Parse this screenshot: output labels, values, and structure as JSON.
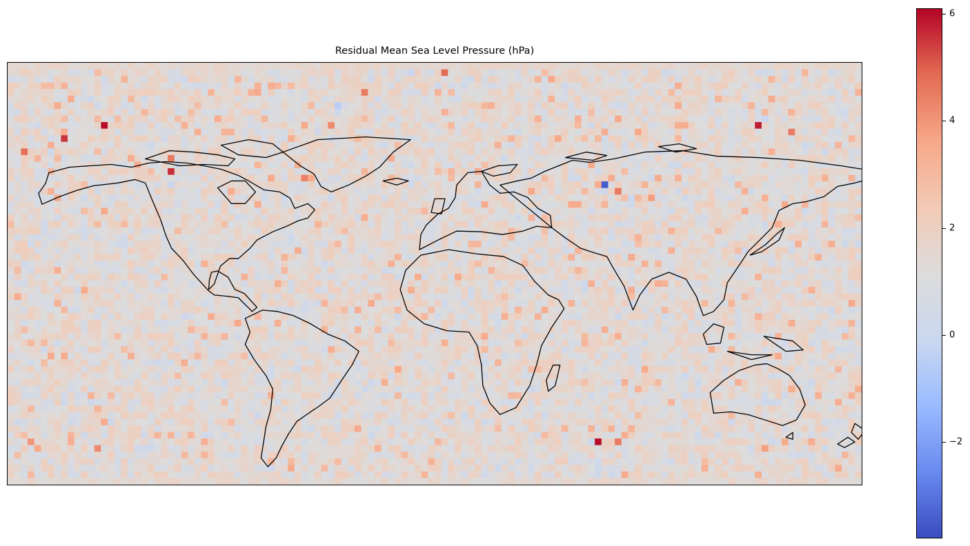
{
  "title": "Residual Mean Sea Level Pressure (hPa)",
  "colorbar": {
    "min": -3.8,
    "max": 6.1,
    "colormap": "coolwarm",
    "ticks": [
      {
        "value": 6,
        "label": "6"
      },
      {
        "value": 4,
        "label": "4"
      },
      {
        "value": 2,
        "label": "2"
      },
      {
        "value": 0,
        "label": "0"
      },
      {
        "value": -2,
        "label": "−2"
      }
    ]
  },
  "map": {
    "projection": "PlateCarree",
    "extent": [
      -180,
      180,
      -90,
      90
    ],
    "baseline_value": 1.4,
    "coastline_color": "#000000",
    "highlights": [
      {
        "lon": -139,
        "lat": 62,
        "value": 6.0
      },
      {
        "lon": -155,
        "lat": 58,
        "value": 5.5
      },
      {
        "lon": -110,
        "lat": 44,
        "value": 5.6
      },
      {
        "lon": -112,
        "lat": 48,
        "value": 4.5
      },
      {
        "lon": -110,
        "lat": 37,
        "value": 0.0
      },
      {
        "lon": -172,
        "lat": 51,
        "value": 4.7
      },
      {
        "lon": -163,
        "lat": 51,
        "value": 0.2
      },
      {
        "lon": -40,
        "lat": 72,
        "value": -0.5
      },
      {
        "lon": -45,
        "lat": 62,
        "value": 4.2
      },
      {
        "lon": -30,
        "lat": 76,
        "value": 4.5
      },
      {
        "lon": -10,
        "lat": 85,
        "value": 0.0
      },
      {
        "lon": 5,
        "lat": 87,
        "value": 4.8
      },
      {
        "lon": 73,
        "lat": 38,
        "value": -3.5
      },
      {
        "lon": 78,
        "lat": 34,
        "value": 4.5
      },
      {
        "lon": 82,
        "lat": 33,
        "value": 0.0
      },
      {
        "lon": 90,
        "lat": 33,
        "value": 3.8
      },
      {
        "lon": 135,
        "lat": 63,
        "value": 5.8
      },
      {
        "lon": 140,
        "lat": 66,
        "value": 0.0
      },
      {
        "lon": 150,
        "lat": 60,
        "value": 4.5
      },
      {
        "lon": 155,
        "lat": 55,
        "value": 0.2
      },
      {
        "lon": -55,
        "lat": 40,
        "value": 4.4
      },
      {
        "lon": 70,
        "lat": -73,
        "value": 6.0
      },
      {
        "lon": 65,
        "lat": -72,
        "value": 0.0
      },
      {
        "lon": 76,
        "lat": -73,
        "value": 4.5
      },
      {
        "lon": -143,
        "lat": -75,
        "value": 4.2
      },
      {
        "lon": -170,
        "lat": -73,
        "value": 4.0
      },
      {
        "lon": -120,
        "lat": -75,
        "value": 0.2
      },
      {
        "lon": -60,
        "lat": -82,
        "value": 3.6
      },
      {
        "lon": 20,
        "lat": -85,
        "value": 0.3
      },
      {
        "lon": 140,
        "lat": -75,
        "value": 3.8
      },
      {
        "lon": 160,
        "lat": -73,
        "value": 3.5
      },
      {
        "lon": -55,
        "lat": -12,
        "value": 0.5
      },
      {
        "lon": -68,
        "lat": -40,
        "value": 0.3
      }
    ]
  }
}
